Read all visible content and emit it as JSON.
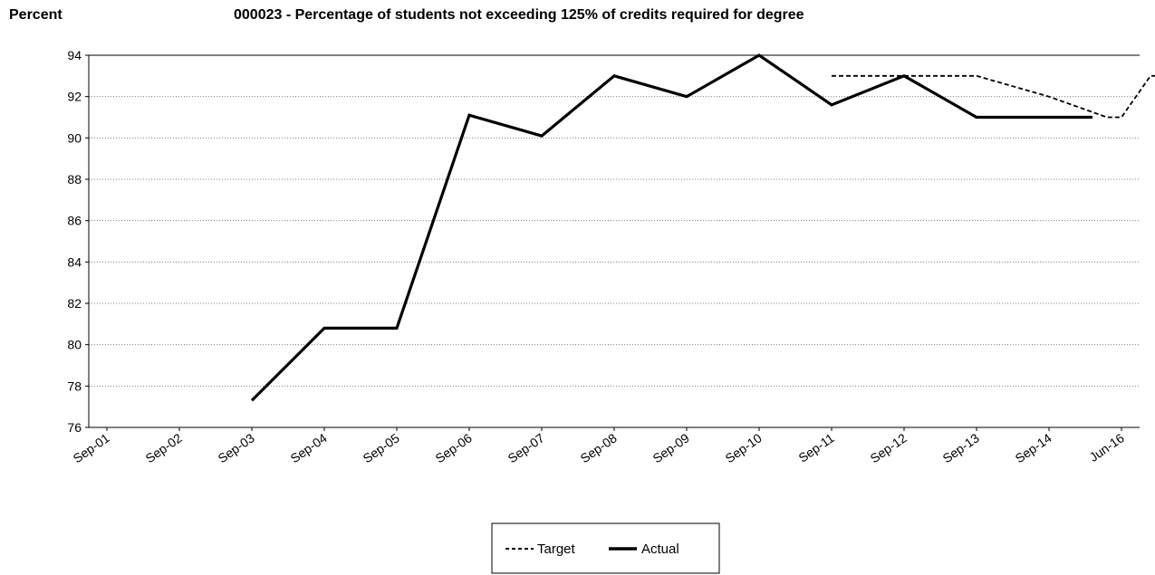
{
  "chart_data": {
    "type": "line",
    "title": "000023 - Percentage of students not exceeding 125% of credits required for degree",
    "ylabel": "Percent",
    "xlabel": "",
    "ylim": [
      76,
      94
    ],
    "yticks": [
      76,
      78,
      80,
      82,
      84,
      86,
      88,
      90,
      92,
      94
    ],
    "categories": [
      "Sep-01",
      "Sep-02",
      "Sep-03",
      "Sep-04",
      "Sep-05",
      "Sep-06",
      "Sep-07",
      "Sep-08",
      "Sep-09",
      "Sep-10",
      "Sep-11",
      "Sep-12",
      "Sep-13",
      "Sep-14",
      "Jun-16"
    ],
    "grid": "horizontal dotted",
    "legend_position": "bottom-center",
    "series": [
      {
        "name": "Target",
        "style": "dashed",
        "points": [
          {
            "x": 10,
            "y": 93
          },
          {
            "x": 11,
            "y": 93
          },
          {
            "x": 12,
            "y": 93
          },
          {
            "x": 13,
            "y": 92
          },
          {
            "x": 13.8,
            "y": 91
          },
          {
            "x": 14,
            "y": 91
          },
          {
            "x": 14.4,
            "y": 93
          },
          {
            "x": 14.7,
            "y": 93
          }
        ]
      },
      {
        "name": "Actual",
        "style": "solid",
        "points": [
          {
            "x": 2,
            "y": 77.3
          },
          {
            "x": 3,
            "y": 80.8
          },
          {
            "x": 4,
            "y": 80.8
          },
          {
            "x": 5,
            "y": 91.1
          },
          {
            "x": 6,
            "y": 90.1
          },
          {
            "x": 7,
            "y": 93
          },
          {
            "x": 8,
            "y": 92
          },
          {
            "x": 9,
            "y": 94
          },
          {
            "x": 10,
            "y": 91.6
          },
          {
            "x": 11,
            "y": 93
          },
          {
            "x": 12,
            "y": 91
          },
          {
            "x": 13,
            "y": 91
          },
          {
            "x": 13.6,
            "y": 91
          }
        ]
      }
    ]
  },
  "legend": {
    "target_label": "Target",
    "actual_label": "Actual"
  },
  "colors": {
    "line": "#000000",
    "grid": "#7f7f7f",
    "background": "#ffffff"
  }
}
